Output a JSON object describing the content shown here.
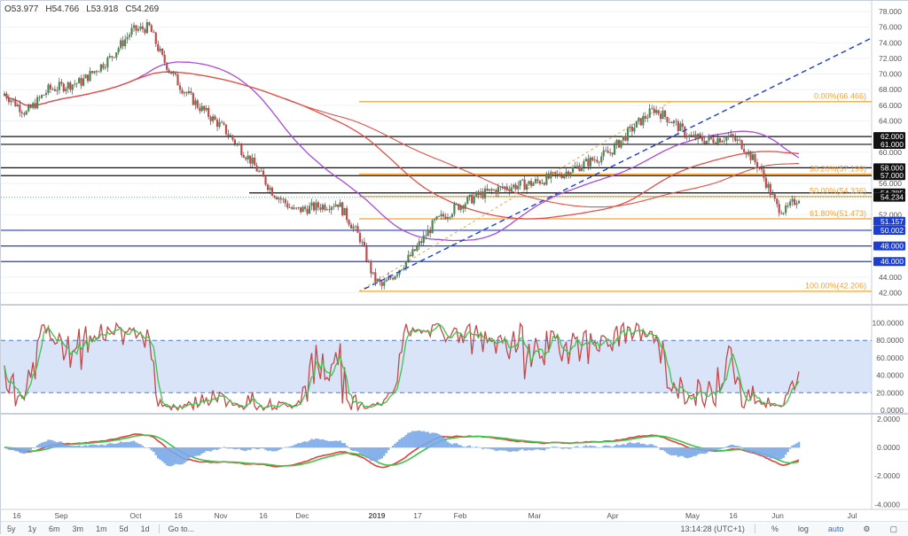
{
  "ohlc": {
    "open": "O53.977",
    "high": "H54.766",
    "low": "L53.918",
    "close": "C54.269"
  },
  "colors": {
    "up": "#4a8a52",
    "down": "#c24a4a",
    "fib": "#f2a33a",
    "blue_line": "#1c3fd1",
    "purple": "#a94bdb",
    "red_ma": "#e0504a",
    "osc_band": "#c9d9f5",
    "hist": "#7aa9e8"
  },
  "price_axis": [
    "78.000",
    "76.000",
    "74.000",
    "72.000",
    "70.000",
    "68.000",
    "66.000",
    "64.000",
    "62.000",
    "60.000",
    "58.000",
    "56.000",
    "54.000",
    "52.000",
    "50.000",
    "48.000",
    "46.000",
    "44.000",
    "42.000"
  ],
  "price_labels": [
    {
      "text": "62.000",
      "price": 62.0,
      "bg": "#111111",
      "fg": "#ffffff"
    },
    {
      "text": "61.000",
      "price": 61.0,
      "bg": "#111111",
      "fg": "#ffffff"
    },
    {
      "text": "58.000",
      "price": 58.0,
      "bg": "#111111",
      "fg": "#ffffff"
    },
    {
      "text": "57.000",
      "price": 57.0,
      "bg": "#111111",
      "fg": "#ffffff"
    },
    {
      "text": "54.785",
      "price": 54.785,
      "bg": "#111111",
      "fg": "#ffffff"
    },
    {
      "text": "54.268",
      "price": 54.268,
      "bg": "#5aa05e",
      "fg": "#ffffff"
    },
    {
      "text": "54.234",
      "price": 54.234,
      "bg": "#111111",
      "fg": "#ffffff"
    },
    {
      "text": "51.157",
      "price": 51.157,
      "bg": "#1c3fd1",
      "fg": "#ffffff"
    },
    {
      "text": "50.002",
      "price": 50.002,
      "bg": "#1c3fd1",
      "fg": "#ffffff"
    },
    {
      "text": "48.000",
      "price": 48.0,
      "bg": "#1c3fd1",
      "fg": "#ffffff"
    },
    {
      "text": "46.000",
      "price": 46.0,
      "bg": "#1c3fd1",
      "fg": "#ffffff"
    }
  ],
  "fib_labels": [
    {
      "text": "0.00%(66.466)",
      "price": 66.466
    },
    {
      "text": "38.20%(57.199)",
      "price": 57.199
    },
    {
      "text": "50.00%(54.336)",
      "price": 54.336
    },
    {
      "text": "61.80%(51.473)",
      "price": 51.473
    },
    {
      "text": "100.00%(42.206)",
      "price": 42.206
    }
  ],
  "osc1_axis": [
    "100.0000",
    "80.0000",
    "60.0000",
    "40.0000",
    "20.0000",
    "0.0000"
  ],
  "osc2_axis": [
    "2.0000",
    "0.0000",
    "-2.0000",
    "-4.0000"
  ],
  "time_axis": [
    "16",
    "Sep",
    "Oct",
    "16",
    "Nov",
    "16",
    "Dec",
    "2019",
    "17",
    "Feb",
    "Mar",
    "Apr",
    "May",
    "16",
    "Jun",
    "Jul"
  ],
  "toolbar": {
    "ranges": [
      "5y",
      "1y",
      "6m",
      "3m",
      "1m",
      "5d",
      "1d",
      "Go to..."
    ],
    "clock": "13:14:28 (UTC+1)",
    "modes": [
      "%",
      "log",
      "auto"
    ]
  }
}
